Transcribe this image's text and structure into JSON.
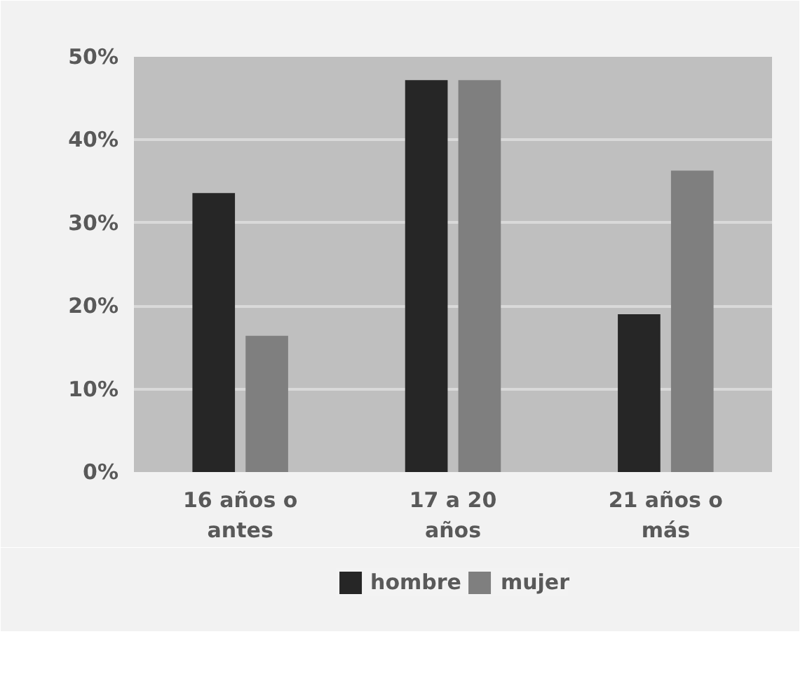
{
  "chart_data": {
    "type": "bar",
    "categories": [
      "16 años o antes",
      "17 a 20 años",
      "21 años o más"
    ],
    "series": [
      {
        "name": "hombre",
        "color": "#262626",
        "values": [
          33.6,
          47.2,
          19.0
        ]
      },
      {
        "name": "mujer",
        "color": "#7f7f7f",
        "values": [
          16.4,
          47.2,
          36.3
        ]
      }
    ],
    "ylim": [
      0,
      50
    ],
    "yticks": [
      {
        "value": 0,
        "label": "0%"
      },
      {
        "value": 10,
        "label": "10%"
      },
      {
        "value": 20,
        "label": "20%"
      },
      {
        "value": 30,
        "label": "30%"
      },
      {
        "value": 40,
        "label": "40%"
      },
      {
        "value": 50,
        "label": "50%"
      }
    ],
    "grid": "y",
    "legend": "bottom"
  }
}
